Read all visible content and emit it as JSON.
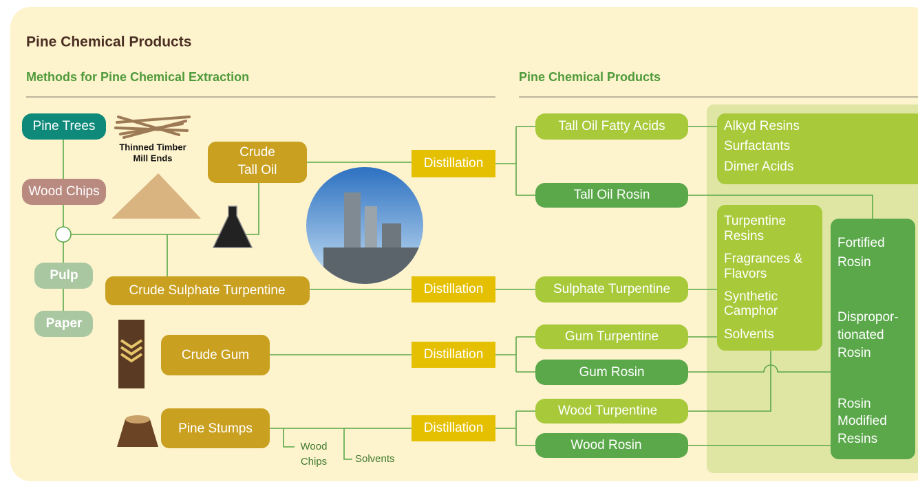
{
  "header": {
    "title": "Pine Chemical Products"
  },
  "sections": [
    "Methods for Pine Chemical Extraction",
    "Pine Chemical Products"
  ],
  "sources": {
    "pine_trees": "Pine Trees",
    "wood_chips": "Wood Chips",
    "pulp": "Pulp",
    "paper": "Paper",
    "thinned_timber": [
      "Thinned Timber",
      "Mill Ends"
    ]
  },
  "crude": {
    "tall_oil": [
      "Crude",
      "Tall Oil"
    ],
    "sulphate_turpentine": "Crude Sulphate Turpentine",
    "gum": "Crude Gum",
    "stumps": "Pine Stumps"
  },
  "stump_byproducts": {
    "wood_chips": [
      "Wood",
      "Chips"
    ],
    "solvents": "Solvents"
  },
  "distillation": [
    "Distillation",
    "Distillation",
    "Distillation",
    "Distillation"
  ],
  "products": {
    "tall_oil_fatty_acids": "Tall Oil Fatty Acids",
    "tall_oil_rosin": "Tall Oil Rosin",
    "sulphate_turpentine": "Sulphate Turpentine",
    "gum_turpentine": "Gum Turpentine",
    "gum_rosin": "Gum Rosin",
    "wood_turpentine": "Wood Turpentine",
    "wood_rosin": "Wood Rosin"
  },
  "derivatives": {
    "fatty_acid": [
      "Alkyd Resins",
      "Surfactants",
      "Dimer Acids"
    ],
    "turpentine": [
      [
        "Turpentine",
        "Resins"
      ],
      [
        "Fragrances &",
        "Flavors"
      ],
      [
        "Synthetic",
        "Camphor"
      ],
      [
        "Solvents"
      ]
    ],
    "rosin": [
      [
        "Fortified",
        "Rosin"
      ],
      [
        "Dispropor-",
        "tionated",
        "Rosin"
      ],
      [
        "Rosin",
        "Modified",
        "Resins"
      ]
    ]
  }
}
